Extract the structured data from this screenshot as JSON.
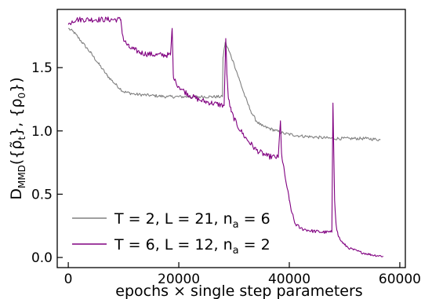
{
  "chart_data": {
    "type": "line",
    "xlabel": "epochs × single step parameters",
    "ylabel": {
      "base": "D",
      "sub": "MMD",
      "rest": "({ρ̃",
      "sub2": "t",
      "mid": "}, {ρ",
      "sub3": "0",
      "end": "})"
    },
    "xlim": [
      -2000,
      61000
    ],
    "ylim": [
      -0.08,
      1.96
    ],
    "xticks": [
      0,
      20000,
      40000,
      60000
    ],
    "xtick_labels": [
      "0",
      "20000",
      "40000",
      "60000"
    ],
    "yticks": [
      0.0,
      0.5,
      1.0,
      1.5
    ],
    "ytick_labels": [
      "0.0",
      "0.5",
      "1.0",
      "1.5"
    ],
    "grid": false,
    "legend_position": "lower-left",
    "series": [
      {
        "name": {
          "a": "T = 2, L = 21, n",
          "sub": "a",
          "b": " = 6"
        },
        "color": "#808080",
        "noise": 0.012,
        "x": [
          0,
          1000,
          2500,
          4000,
          5500,
          7000,
          8500,
          10000,
          12000,
          15000,
          18000,
          21000,
          24000,
          26000,
          27900,
          28000,
          28400,
          29000,
          30000,
          31000,
          32000,
          33000,
          34000,
          35000,
          37000,
          39000,
          42000,
          45000,
          48000,
          51000,
          54000,
          56500
        ],
        "y": [
          1.81,
          1.78,
          1.7,
          1.62,
          1.53,
          1.44,
          1.37,
          1.31,
          1.29,
          1.28,
          1.27,
          1.27,
          1.27,
          1.27,
          1.27,
          1.58,
          1.7,
          1.64,
          1.53,
          1.4,
          1.27,
          1.16,
          1.08,
          1.04,
          1.01,
          0.98,
          0.96,
          0.95,
          0.94,
          0.94,
          0.94,
          0.93
        ]
      },
      {
        "name": {
          "a": "T = 6, L = 12, n",
          "sub": "a",
          "b": " = 2"
        },
        "color": "#800080",
        "noise": 0.022,
        "x": [
          0,
          300,
          700,
          1500,
          5000,
          9500,
          9700,
          10000,
          11000,
          12000,
          13000,
          14000,
          16000,
          18500,
          18800,
          19000,
          19200,
          19500,
          20500,
          22000,
          24000,
          26000,
          28200,
          28500,
          28700,
          29000,
          29500,
          30500,
          32000,
          34000,
          36000,
          38000,
          38400,
          38600,
          38800,
          39200,
          39600,
          40000,
          40500,
          41000,
          42000,
          44000,
          46000,
          47700,
          47900,
          48200,
          48500,
          48800,
          49200,
          50000,
          51000,
          53000,
          55000,
          57000
        ],
        "y": [
          1.84,
          1.85,
          1.87,
          1.88,
          1.88,
          1.88,
          1.8,
          1.72,
          1.66,
          1.64,
          1.62,
          1.61,
          1.6,
          1.6,
          1.81,
          1.45,
          1.4,
          1.38,
          1.33,
          1.28,
          1.24,
          1.22,
          1.2,
          1.73,
          1.45,
          1.25,
          1.15,
          1.05,
          0.95,
          0.85,
          0.8,
          0.79,
          1.08,
          0.82,
          0.75,
          0.65,
          0.55,
          0.45,
          0.35,
          0.27,
          0.23,
          0.21,
          0.2,
          0.2,
          1.22,
          0.45,
          0.25,
          0.18,
          0.14,
          0.1,
          0.07,
          0.04,
          0.02,
          0.01
        ]
      }
    ]
  }
}
